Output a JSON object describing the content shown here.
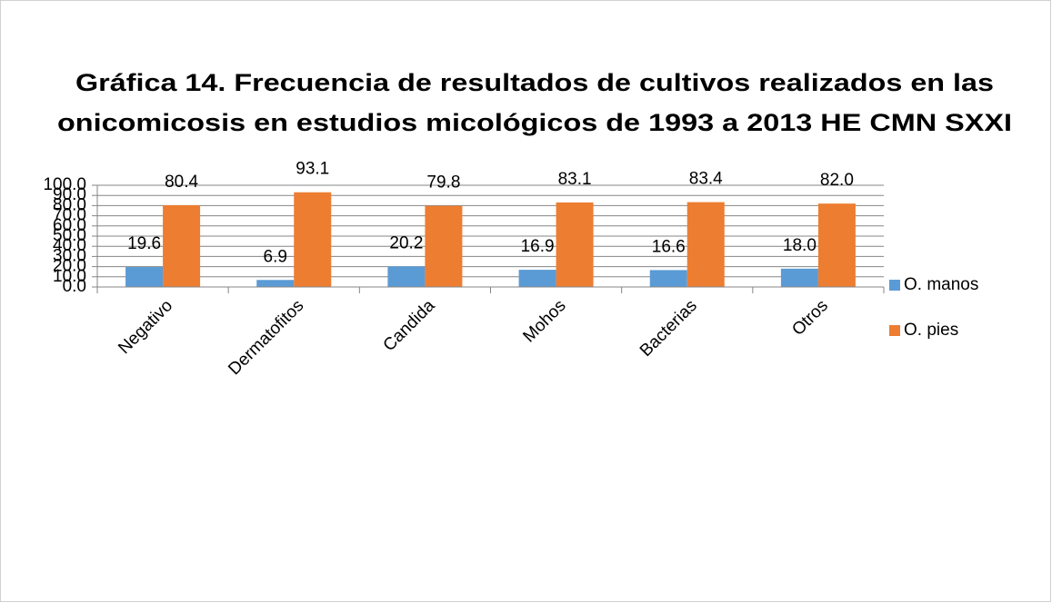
{
  "chart_data": {
    "type": "bar",
    "title": [
      "Gráfica 14. Frecuencia  de resultados de cultivos realizados en las",
      "onicomicosis en estudios micológicos de 1993 a 2013 HE CMN SXXI"
    ],
    "categories": [
      "Negativo",
      "Dermatofitos",
      "Candida",
      "Mohos",
      "Bacterias",
      "Otros"
    ],
    "series": [
      {
        "name": "O. manos",
        "color": "#5b9bd5",
        "values": [
          19.6,
          6.9,
          20.2,
          16.9,
          16.6,
          18.0
        ],
        "value_labels": [
          "19.6",
          "6.9",
          "20.2",
          "16.9",
          "16.6",
          "18.0"
        ]
      },
      {
        "name": "O. pies",
        "color": "#ed7d31",
        "values": [
          80.4,
          93.1,
          79.8,
          83.1,
          83.4,
          82.0
        ],
        "value_labels": [
          "80.4",
          "93.1",
          "79.8",
          "83.1",
          "83.4",
          "82.0"
        ]
      }
    ],
    "ylim": [
      0,
      100
    ],
    "yticks": [
      {
        "value": 0,
        "label": "0.0"
      },
      {
        "value": 10,
        "label": "10.0"
      },
      {
        "value": 20,
        "label": "20.0"
      },
      {
        "value": 30,
        "label": "30.0"
      },
      {
        "value": 40,
        "label": "40.0"
      },
      {
        "value": 50,
        "label": "50.0"
      },
      {
        "value": 60,
        "label": "60.0"
      },
      {
        "value": 70,
        "label": "70.0"
      },
      {
        "value": 80,
        "label": "80.0"
      },
      {
        "value": 90,
        "label": "90.0"
      },
      {
        "value": 100,
        "label": "100.0"
      }
    ],
    "grid": true,
    "legend": "right"
  }
}
